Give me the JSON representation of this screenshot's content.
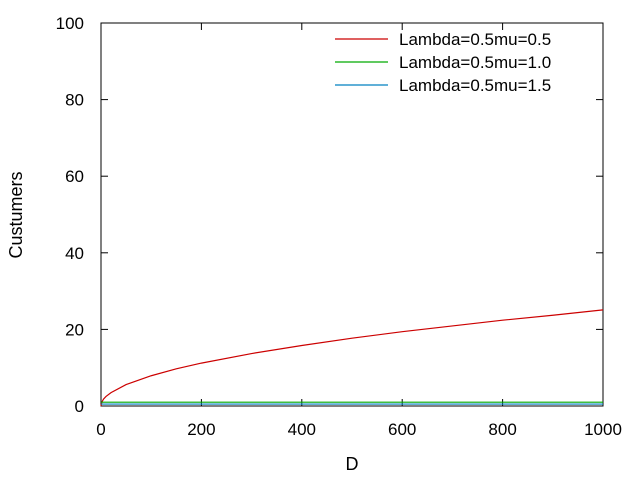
{
  "chart_data": {
    "type": "line",
    "title": "",
    "xlabel": "D",
    "ylabel": "Custumers",
    "xlim": [
      0,
      1000
    ],
    "ylim": [
      0,
      100
    ],
    "x_ticks": [
      0,
      200,
      400,
      600,
      800,
      1000
    ],
    "y_ticks": [
      0,
      20,
      40,
      60,
      80,
      100
    ],
    "grid": false,
    "legend_position": "top-right",
    "series": [
      {
        "name": "Lambda=0.5mu=0.5",
        "color": "#cc0000",
        "x": [
          0,
          2,
          5,
          10,
          20,
          50,
          100,
          150,
          200,
          300,
          400,
          500,
          600,
          700,
          800,
          900,
          1000
        ],
        "y": [
          0,
          1.1,
          1.8,
          2.5,
          3.5,
          5.6,
          7.9,
          9.7,
          11.2,
          13.7,
          15.8,
          17.7,
          19.4,
          20.9,
          22.4,
          23.7,
          25.1
        ]
      },
      {
        "name": "Lambda=0.5mu=1.0",
        "color": "#00aa00",
        "x": [
          0,
          1000
        ],
        "y": [
          1.0,
          1.0
        ]
      },
      {
        "name": "Lambda=0.5mu=1.5",
        "color": "#0080c0",
        "x": [
          0,
          1000
        ],
        "y": [
          0.5,
          0.5
        ]
      }
    ]
  }
}
